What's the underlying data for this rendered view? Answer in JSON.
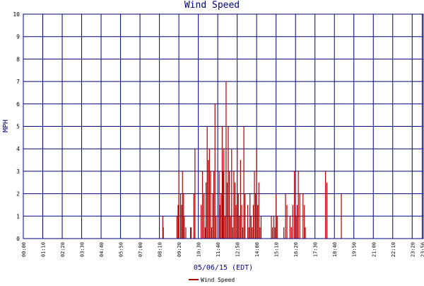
{
  "chart_data": {
    "type": "bar",
    "title": "Wind Speed",
    "xlabel": "05/06/15 (EDT)",
    "ylabel": "MPH",
    "legend": [
      "Wind Speed"
    ],
    "legend_placement": "bottom-center",
    "grid": true,
    "ylim": [
      0,
      10
    ],
    "yticks": [
      "0",
      "1",
      "2",
      "3",
      "4",
      "5",
      "6",
      "7",
      "8",
      "9",
      "10"
    ],
    "x_range_minutes": [
      0,
      1440
    ],
    "xtick_minutes": [
      0,
      70,
      140,
      210,
      280,
      350,
      420,
      490,
      560,
      630,
      700,
      770,
      840,
      910,
      980,
      1050,
      1120,
      1190,
      1260,
      1330,
      1400,
      1436
    ],
    "xticks": [
      "00:00",
      "01:10",
      "02:20",
      "03:30",
      "04:40",
      "05:50",
      "07:00",
      "08:10",
      "09:20",
      "10:30",
      "11:40",
      "12:50",
      "14:00",
      "15:10",
      "16:20",
      "17:30",
      "18:40",
      "19:50",
      "21:00",
      "22:10",
      "23:20",
      "23:56"
    ],
    "series": [
      {
        "name": "Wind Speed",
        "color": "#b00000",
        "x_minutes": [
          502,
          504,
          553,
          557,
          560,
          566,
          570,
          573,
          577,
          579,
          585,
          602,
          604,
          614,
          618,
          640,
          645,
          650,
          655,
          658,
          662,
          666,
          670,
          674,
          678,
          682,
          686,
          690,
          694,
          705,
          708,
          712,
          716,
          719,
          722,
          726,
          730,
          734,
          738,
          742,
          746,
          750,
          754,
          758,
          762,
          766,
          770,
          774,
          778,
          782,
          786,
          790,
          794,
          798,
          808,
          812,
          816,
          820,
          824,
          828,
          832,
          836,
          840,
          844,
          848,
          852,
          856,
          893,
          897,
          902,
          906,
          910,
          914,
          938,
          944,
          949,
          960,
          965,
          970,
          976,
          982,
          986,
          990,
          995,
          1007,
          1012,
          1015,
          1088,
          1093,
          1145
        ],
        "values": [
          1,
          0.5,
          1,
          1.5,
          3,
          2,
          1.5,
          3,
          2,
          1,
          0.5,
          0.5,
          0.5,
          2,
          4,
          1.5,
          3,
          2,
          0.5,
          2.5,
          5,
          3.5,
          4,
          3,
          0.5,
          2,
          3,
          6,
          1,
          3,
          1.5,
          2,
          5,
          3,
          4,
          1,
          7,
          2.5,
          5,
          3,
          1,
          4,
          0.5,
          3,
          2.5,
          1.5,
          4,
          2,
          1,
          3.5,
          1.5,
          0.5,
          5,
          2,
          1.5,
          0.5,
          2,
          1,
          0.5,
          1.5,
          3,
          2,
          4,
          1.5,
          2.5,
          0.5,
          1,
          1,
          0.5,
          1,
          0.5,
          2,
          1,
          0.5,
          2,
          1.5,
          1,
          0.5,
          1.5,
          3,
          1,
          1.5,
          3,
          2,
          2,
          1.5,
          0.5,
          3,
          2.5,
          2
        ]
      }
    ]
  }
}
